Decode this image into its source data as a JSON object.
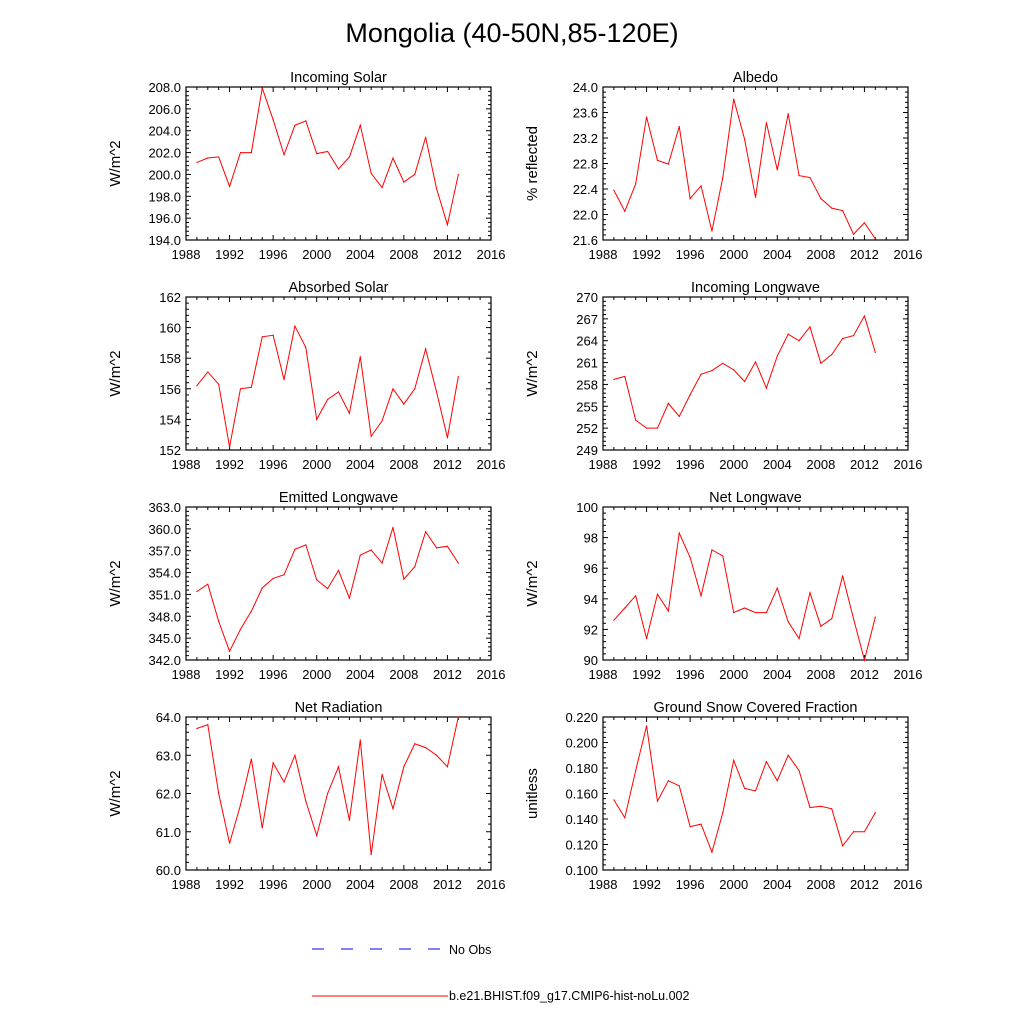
{
  "figure": {
    "title": "Mongolia (40-50N,85-120E)"
  },
  "legend": {
    "entries": [
      {
        "label": "No Obs",
        "color": "#0000ff",
        "style": "dashed"
      },
      {
        "label": "b.e21.BHIST.f09_g17.CMIP6-hist-noLu.002",
        "color": "#ff0000",
        "style": "solid"
      }
    ]
  },
  "chart_data": [
    {
      "type": "line",
      "title": "Incoming Solar",
      "ylabel": "W/m^2",
      "xlim": [
        1988,
        2016
      ],
      "ylim": [
        194,
        208
      ],
      "xticks": [
        1988,
        1992,
        1996,
        2000,
        2004,
        2008,
        2012,
        2016
      ],
      "xtick_labels": [
        "1988",
        "1992",
        "1996",
        "2000",
        "2004",
        "2008",
        "2012",
        "2016"
      ],
      "yticks": [
        194,
        196,
        198,
        200,
        202,
        204,
        206,
        208
      ],
      "ytick_labels": [
        "194.0",
        "196.0",
        "198.0",
        "200.0",
        "202.0",
        "204.0",
        "206.0",
        "208.0"
      ],
      "series": [
        {
          "color": "#ff0000",
          "x": [
            1989,
            1990,
            1991,
            1992,
            1993,
            1994,
            1995,
            1996,
            1997,
            1998,
            1999,
            2000,
            2001,
            2002,
            2003,
            2004,
            2005,
            2006,
            2007,
            2008,
            2009,
            2010,
            2011,
            2012,
            2013
          ],
          "y": [
            201.1,
            201.5,
            201.6,
            198.9,
            202.0,
            202.0,
            207.9,
            205.0,
            201.8,
            204.5,
            204.9,
            201.9,
            202.1,
            200.5,
            201.6,
            204.5,
            200.1,
            198.8,
            201.5,
            199.3,
            200.0,
            203.4,
            198.7,
            195.4,
            200.0
          ]
        }
      ]
    },
    {
      "type": "line",
      "title": "Albedo",
      "ylabel": "% reflected",
      "xlim": [
        1988,
        2016
      ],
      "ylim": [
        21.6,
        24.0
      ],
      "xticks": [
        1988,
        1992,
        1996,
        2000,
        2004,
        2008,
        2012,
        2016
      ],
      "xtick_labels": [
        "1988",
        "1992",
        "1996",
        "2000",
        "2004",
        "2008",
        "2012",
        "2016"
      ],
      "yticks": [
        21.6,
        22.0,
        22.4,
        22.8,
        23.2,
        23.6,
        24.0
      ],
      "ytick_labels": [
        "21.6",
        "22.0",
        "22.4",
        "22.8",
        "23.2",
        "23.6",
        "24.0"
      ],
      "series": [
        {
          "color": "#ff0000",
          "x": [
            1989,
            1990,
            1991,
            1992,
            1993,
            1994,
            1995,
            1996,
            1997,
            1998,
            1999,
            2000,
            2001,
            2002,
            2003,
            2004,
            2005,
            2006,
            2007,
            2008,
            2009,
            2010,
            2011,
            2012,
            2013
          ],
          "y": [
            22.38,
            22.05,
            22.48,
            23.53,
            22.85,
            22.79,
            23.38,
            22.25,
            22.45,
            21.74,
            22.58,
            23.81,
            23.18,
            22.27,
            23.44,
            22.7,
            23.58,
            22.61,
            22.58,
            22.25,
            22.1,
            22.06,
            21.69,
            21.87,
            21.62
          ]
        }
      ]
    },
    {
      "type": "line",
      "title": "Absorbed Solar",
      "ylabel": "W/m^2",
      "xlim": [
        1988,
        2016
      ],
      "ylim": [
        152,
        162
      ],
      "xticks": [
        1988,
        1992,
        1996,
        2000,
        2004,
        2008,
        2012,
        2016
      ],
      "xtick_labels": [
        "1988",
        "1992",
        "1996",
        "2000",
        "2004",
        "2008",
        "2012",
        "2016"
      ],
      "yticks": [
        152,
        154,
        156,
        158,
        160,
        162
      ],
      "ytick_labels": [
        "152",
        "154",
        "156",
        "158",
        "160",
        "162"
      ],
      "series": [
        {
          "color": "#ff0000",
          "x": [
            1989,
            1990,
            1991,
            1992,
            1993,
            1994,
            1995,
            1996,
            1997,
            1998,
            1999,
            2000,
            2001,
            2002,
            2003,
            2004,
            2005,
            2006,
            2007,
            2008,
            2009,
            2010,
            2011,
            2012,
            2013
          ],
          "y": [
            156.2,
            157.1,
            156.3,
            152.2,
            156.0,
            156.1,
            159.4,
            159.5,
            156.6,
            160.1,
            158.7,
            154.0,
            155.3,
            155.8,
            154.4,
            158.1,
            152.9,
            153.9,
            156.0,
            155.0,
            156.0,
            158.6,
            155.8,
            152.8,
            156.8
          ]
        }
      ]
    },
    {
      "type": "line",
      "title": "Incoming Longwave",
      "ylabel": "W/m^2",
      "xlim": [
        1988,
        2016
      ],
      "ylim": [
        249,
        270
      ],
      "xticks": [
        1988,
        1992,
        1996,
        2000,
        2004,
        2008,
        2012,
        2016
      ],
      "xtick_labels": [
        "1988",
        "1992",
        "1996",
        "2000",
        "2004",
        "2008",
        "2012",
        "2016"
      ],
      "yticks": [
        249,
        252,
        255,
        258,
        261,
        264,
        267,
        270
      ],
      "ytick_labels": [
        "249",
        "252",
        "255",
        "258",
        "261",
        "264",
        "267",
        "270"
      ],
      "series": [
        {
          "color": "#ff0000",
          "x": [
            1989,
            1990,
            1991,
            1992,
            1993,
            1994,
            1995,
            1996,
            1997,
            1998,
            1999,
            2000,
            2001,
            2002,
            2003,
            2004,
            2005,
            2006,
            2007,
            2008,
            2009,
            2010,
            2011,
            2012,
            2013
          ],
          "y": [
            258.7,
            259.1,
            253.1,
            252.0,
            252.0,
            255.4,
            253.6,
            256.6,
            259.4,
            259.9,
            260.9,
            260.0,
            258.4,
            261.1,
            257.5,
            261.9,
            264.9,
            264.0,
            265.9,
            260.9,
            262.1,
            264.3,
            264.7,
            267.4,
            262.4
          ]
        }
      ]
    },
    {
      "type": "line",
      "title": "Emitted Longwave",
      "ylabel": "W/m^2",
      "xlim": [
        1988,
        2016
      ],
      "ylim": [
        342,
        363
      ],
      "xticks": [
        1988,
        1992,
        1996,
        2000,
        2004,
        2008,
        2012,
        2016
      ],
      "xtick_labels": [
        "1988",
        "1992",
        "1996",
        "2000",
        "2004",
        "2008",
        "2012",
        "2016"
      ],
      "yticks": [
        342,
        345,
        348,
        351,
        354,
        357,
        360,
        363
      ],
      "ytick_labels": [
        "342.0",
        "345.0",
        "348.0",
        "351.0",
        "354.0",
        "357.0",
        "360.0",
        "363.0"
      ],
      "series": [
        {
          "color": "#ff0000",
          "x": [
            1989,
            1990,
            1991,
            1992,
            1993,
            1994,
            1995,
            1996,
            1997,
            1998,
            1999,
            2000,
            2001,
            2002,
            2003,
            2004,
            2005,
            2006,
            2007,
            2008,
            2009,
            2010,
            2011,
            2012,
            2013
          ],
          "y": [
            351.4,
            352.4,
            347.3,
            343.2,
            346.2,
            348.7,
            351.9,
            353.2,
            353.7,
            357.2,
            357.8,
            353.0,
            351.8,
            354.3,
            350.5,
            356.4,
            357.1,
            355.3,
            360.2,
            353.1,
            354.8,
            359.6,
            357.4,
            357.6,
            355.3
          ]
        }
      ]
    },
    {
      "type": "line",
      "title": "Net Longwave",
      "ylabel": "W/m^2",
      "xlim": [
        1988,
        2016
      ],
      "ylim": [
        90,
        100
      ],
      "xticks": [
        1988,
        1992,
        1996,
        2000,
        2004,
        2008,
        2012,
        2016
      ],
      "xtick_labels": [
        "1988",
        "1992",
        "1996",
        "2000",
        "2004",
        "2008",
        "2012",
        "2016"
      ],
      "yticks": [
        90,
        92,
        94,
        96,
        98,
        100
      ],
      "ytick_labels": [
        "90",
        "92",
        "94",
        "96",
        "98",
        "100"
      ],
      "series": [
        {
          "color": "#ff0000",
          "x": [
            1989,
            1990,
            1991,
            1992,
            1993,
            1994,
            1995,
            1996,
            1997,
            1998,
            1999,
            2000,
            2001,
            2002,
            2003,
            2004,
            2005,
            2006,
            2007,
            2008,
            2009,
            2010,
            2011,
            2012,
            2013
          ],
          "y": [
            92.6,
            93.4,
            94.2,
            91.4,
            94.3,
            93.2,
            98.3,
            96.7,
            94.2,
            97.2,
            96.8,
            93.1,
            93.4,
            93.1,
            93.1,
            94.7,
            92.5,
            91.4,
            94.4,
            92.2,
            92.7,
            95.5,
            92.7,
            90.0,
            92.8
          ]
        }
      ]
    },
    {
      "type": "line",
      "title": "Net Radiation",
      "ylabel": "W/m^2",
      "xlim": [
        1988,
        2016
      ],
      "ylim": [
        60,
        64
      ],
      "xticks": [
        1988,
        1992,
        1996,
        2000,
        2004,
        2008,
        2012,
        2016
      ],
      "xtick_labels": [
        "1988",
        "1992",
        "1996",
        "2000",
        "2004",
        "2008",
        "2012",
        "2016"
      ],
      "yticks": [
        60,
        61,
        62,
        63,
        64
      ],
      "ytick_labels": [
        "60.0",
        "61.0",
        "62.0",
        "63.0",
        "64.0"
      ],
      "series": [
        {
          "color": "#ff0000",
          "x": [
            1989,
            1990,
            1991,
            1992,
            1993,
            1994,
            1995,
            1996,
            1997,
            1998,
            1999,
            2000,
            2001,
            2002,
            2003,
            2004,
            2005,
            2006,
            2007,
            2008,
            2009,
            2010,
            2011,
            2012,
            2013
          ],
          "y": [
            63.7,
            63.8,
            62.0,
            60.7,
            61.7,
            62.9,
            61.1,
            62.8,
            62.3,
            63.0,
            61.8,
            60.9,
            62.0,
            62.7,
            61.3,
            63.4,
            60.4,
            62.5,
            61.6,
            62.7,
            63.3,
            63.2,
            63.0,
            62.7,
            64.0
          ]
        }
      ]
    },
    {
      "type": "line",
      "title": "Ground Snow Covered Fraction",
      "ylabel": "unitless",
      "xlim": [
        1988,
        2016
      ],
      "ylim": [
        0.1,
        0.22
      ],
      "xticks": [
        1988,
        1992,
        1996,
        2000,
        2004,
        2008,
        2012,
        2016
      ],
      "xtick_labels": [
        "1988",
        "1992",
        "1996",
        "2000",
        "2004",
        "2008",
        "2012",
        "2016"
      ],
      "yticks": [
        0.1,
        0.12,
        0.14,
        0.16,
        0.18,
        0.2,
        0.22
      ],
      "ytick_labels": [
        "0.100",
        "0.120",
        "0.140",
        "0.160",
        "0.180",
        "0.200",
        "0.220"
      ],
      "series": [
        {
          "color": "#ff0000",
          "x": [
            1989,
            1990,
            1991,
            1992,
            1993,
            1994,
            1995,
            1996,
            1997,
            1998,
            1999,
            2000,
            2001,
            2002,
            2003,
            2004,
            2005,
            2006,
            2007,
            2008,
            2009,
            2010,
            2011,
            2012,
            2013
          ],
          "y": [
            0.155,
            0.141,
            0.178,
            0.213,
            0.154,
            0.17,
            0.166,
            0.134,
            0.136,
            0.114,
            0.145,
            0.186,
            0.164,
            0.162,
            0.185,
            0.17,
            0.19,
            0.178,
            0.149,
            0.15,
            0.148,
            0.119,
            0.13,
            0.13,
            0.145
          ]
        }
      ]
    }
  ]
}
